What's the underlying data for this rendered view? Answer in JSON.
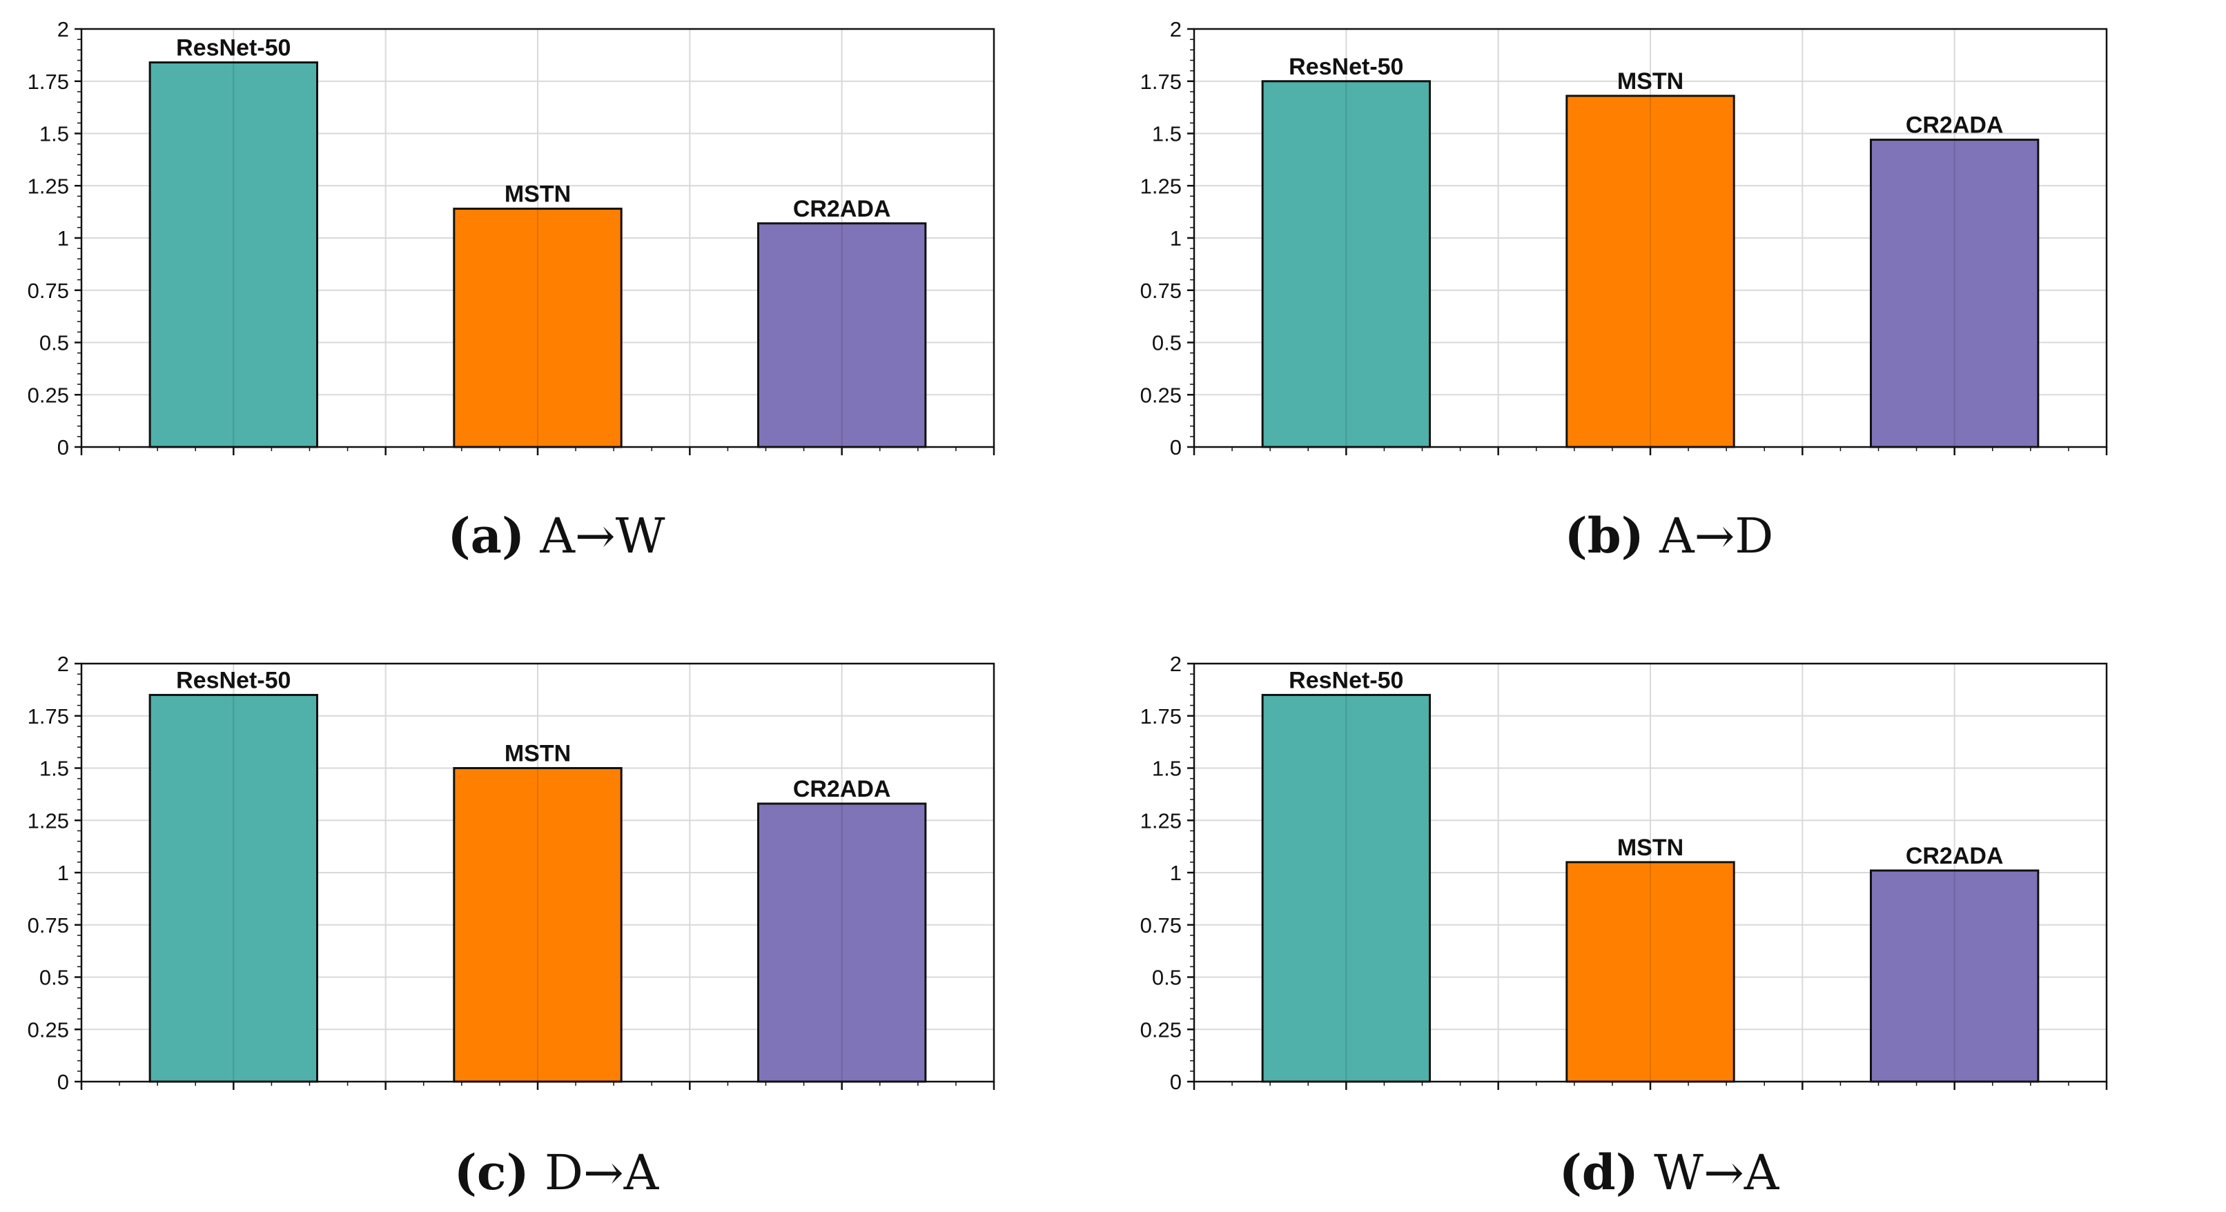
{
  "colors": {
    "ResNet-50": "#4fb1aa",
    "MSTN": "#ff8000",
    "CR2ADA": "#8074b8"
  },
  "chart_data": [
    {
      "type": "bar",
      "id": "a",
      "caption_label": "(a)",
      "caption_text": "A→W",
      "categories": [
        "ResNet-50",
        "MSTN",
        "CR2ADA"
      ],
      "values": [
        1.84,
        1.14,
        1.07
      ],
      "ylim": [
        0,
        2
      ],
      "yticks": [
        "0",
        "0.25",
        "0.5",
        "0.75",
        "1",
        "1.25",
        "1.5",
        "1.75",
        "2"
      ],
      "grid": true
    },
    {
      "type": "bar",
      "id": "b",
      "caption_label": "(b)",
      "caption_text": "A→D",
      "categories": [
        "ResNet-50",
        "MSTN",
        "CR2ADA"
      ],
      "values": [
        1.75,
        1.68,
        1.47
      ],
      "ylim": [
        0,
        2
      ],
      "yticks": [
        "0",
        "0.25",
        "0.5",
        "0.75",
        "1",
        "1.25",
        "1.5",
        "1.75",
        "2"
      ],
      "grid": true
    },
    {
      "type": "bar",
      "id": "c",
      "caption_label": "(c)",
      "caption_text": "D→A",
      "categories": [
        "ResNet-50",
        "MSTN",
        "CR2ADA"
      ],
      "values": [
        1.85,
        1.5,
        1.33
      ],
      "ylim": [
        0,
        2
      ],
      "yticks": [
        "0",
        "0.25",
        "0.5",
        "0.75",
        "1",
        "1.25",
        "1.5",
        "1.75",
        "2"
      ],
      "grid": true
    },
    {
      "type": "bar",
      "id": "d",
      "caption_label": "(d)",
      "caption_text": "W→A",
      "categories": [
        "ResNet-50",
        "MSTN",
        "CR2ADA"
      ],
      "values": [
        1.85,
        1.05,
        1.01
      ],
      "ylim": [
        0,
        2
      ],
      "yticks": [
        "0",
        "0.25",
        "0.5",
        "0.75",
        "1",
        "1.25",
        "1.5",
        "1.75",
        "2"
      ],
      "grid": true
    }
  ]
}
